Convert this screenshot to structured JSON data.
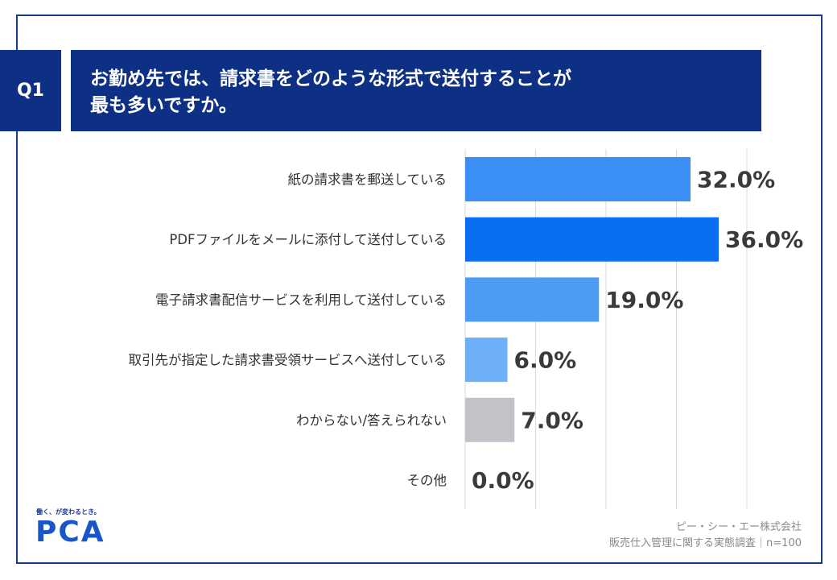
{
  "header": {
    "question_tag": "Q1",
    "title_line1": "お勤め先では、請求書をどのような形式で送付することが",
    "title_line2": "最も多いですか。"
  },
  "chart_data": {
    "type": "bar",
    "orientation": "horizontal",
    "categories": [
      "紙の請求書を郵送している",
      "PDFファイルをメールに添付して送付している",
      "電子請求書配信サービスを利用して送付している",
      "取引先が指定した請求書受領サービスへ送付している",
      "わからない/答えられない",
      "その他"
    ],
    "values": [
      32.0,
      36.0,
      19.0,
      6.0,
      7.0,
      0.0
    ],
    "value_labels": [
      "32.0%",
      "36.0%",
      "19.0%",
      "6.0%",
      "7.0%",
      "0.0%"
    ],
    "colors": [
      "#3a8ef5",
      "#0a6ef2",
      "#4d9bf5",
      "#6eb0f7",
      "#c4c2c8",
      "#c4c2c8"
    ],
    "xlim": [
      0,
      40
    ],
    "grid": true
  },
  "branding": {
    "tagline": "働く、が変わるとき。",
    "logo_text": "PCA"
  },
  "footer": {
    "company": "ピー・シー・エー株式会社",
    "survey": "販売仕入管理に関する実態調査｜n=100"
  }
}
